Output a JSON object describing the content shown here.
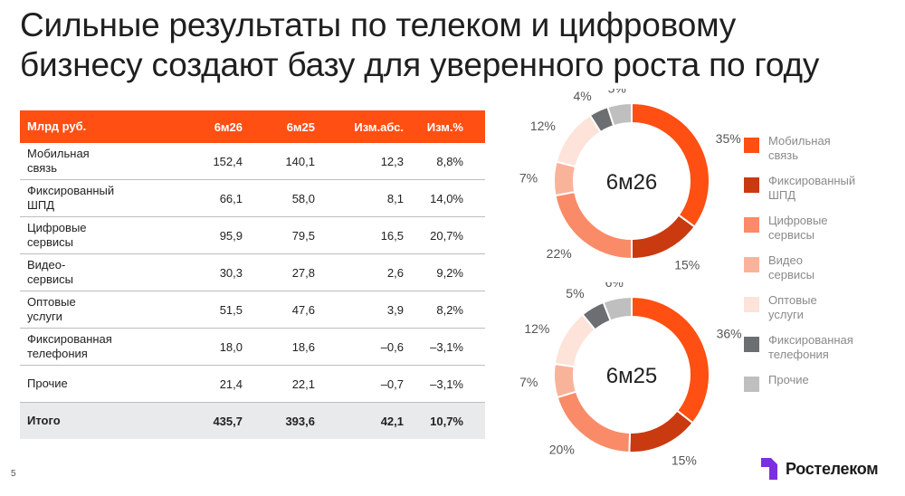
{
  "title": {
    "line1": "Сильные результаты по телеком и цифровому",
    "line2": "бизнесу создают базу для уверенного роста по году"
  },
  "table": {
    "headers": [
      "Млрд руб.",
      "6м26",
      "6м25",
      "Изм.абс.",
      "Изм.%"
    ],
    "rows": [
      {
        "label": [
          "Мобильная",
          "связь"
        ],
        "v1": "152,4",
        "v2": "140,1",
        "abs": "12,3",
        "pct": "8,8%"
      },
      {
        "label": [
          "Фиксированный",
          "ШПД"
        ],
        "v1": "66,1",
        "v2": "58,0",
        "abs": "8,1",
        "pct": "14,0%"
      },
      {
        "label": [
          "Цифровые",
          "сервисы"
        ],
        "v1": "95,9",
        "v2": "79,5",
        "abs": "16,5",
        "pct": "20,7%"
      },
      {
        "label": [
          "Видео-",
          "сервисы"
        ],
        "v1": "30,3",
        "v2": "27,8",
        "abs": "2,6",
        "pct": "9,2%"
      },
      {
        "label": [
          "Оптовые",
          "услуги"
        ],
        "v1": "51,5",
        "v2": "47,6",
        "abs": "3,9",
        "pct": "8,2%"
      },
      {
        "label": [
          "Фиксированная",
          "телефония"
        ],
        "v1": "18,0",
        "v2": "18,6",
        "abs": "–0,6",
        "pct": "–3,1%"
      },
      {
        "label": [
          "Прочие"
        ],
        "v1": "21,4",
        "v2": "22,1",
        "abs": "–0,7",
        "pct": "–3,1%"
      }
    ],
    "total": {
      "label": "Итого",
      "v1": "435,7",
      "v2": "393,6",
      "abs": "42,1",
      "pct": "10,7%"
    }
  },
  "chart_data": [
    {
      "type": "pie",
      "title": "6м26",
      "donut": true,
      "categories": [
        "Мобильная связь",
        "Фиксированный ШПД",
        "Цифровые сервисы",
        "Видео сервисы",
        "Оптовые услуги",
        "Фиксированная телефония",
        "Прочие"
      ],
      "values": [
        35,
        15,
        22,
        7,
        12,
        4,
        5
      ],
      "labels": [
        "35%",
        "15%",
        "22%",
        "7%",
        "12%",
        "4%",
        "5%"
      ],
      "colors": [
        "#ff4f12",
        "#c93a10",
        "#f98b68",
        "#fab39b",
        "#fde3d9",
        "#6d6e71",
        "#bfbfbf"
      ]
    },
    {
      "type": "pie",
      "title": "6м25",
      "donut": true,
      "categories": [
        "Мобильная связь",
        "Фиксированный ШПД",
        "Цифровые сервисы",
        "Видео сервисы",
        "Оптовые услуги",
        "Фиксированная телефония",
        "Прочие"
      ],
      "values": [
        36,
        15,
        20,
        7,
        12,
        5,
        6
      ],
      "labels": [
        "36%",
        "15%",
        "20%",
        "7%",
        "12%",
        "5%",
        "6%"
      ],
      "colors": [
        "#ff4f12",
        "#c93a10",
        "#f98b68",
        "#fab39b",
        "#fde3d9",
        "#6d6e71",
        "#bfbfbf"
      ]
    }
  ],
  "legend": [
    {
      "label": [
        "Мобильная",
        "связь"
      ],
      "color": "#ff4f12"
    },
    {
      "label": [
        "Фиксированный",
        "ШПД"
      ],
      "color": "#c93a10"
    },
    {
      "label": [
        "Цифровые",
        "сервисы"
      ],
      "color": "#f98b68"
    },
    {
      "label": [
        "Видео",
        "сервисы"
      ],
      "color": "#fab39b"
    },
    {
      "label": [
        "Оптовые",
        "услуги"
      ],
      "color": "#fde3d9"
    },
    {
      "label": [
        "Фиксированная",
        "телефония"
      ],
      "color": "#6d6e71"
    },
    {
      "label": [
        "Прочие"
      ],
      "color": "#bfbfbf"
    }
  ],
  "page_number": "5",
  "logo": {
    "text": "Ростелеком",
    "icon": "rostelecom-logo-icon",
    "icon_color": "#7b2fe0"
  }
}
